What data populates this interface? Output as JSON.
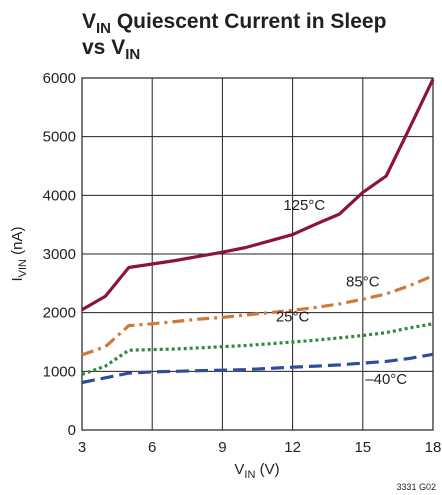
{
  "chart_data": {
    "type": "line",
    "title": {
      "line1": {
        "main": "V",
        "sub": "IN",
        "rest": " Quiescent Current in Sleep"
      },
      "line2": {
        "main": "vs V",
        "sub": "IN"
      }
    },
    "xlabel": {
      "main": "V",
      "sub": "IN",
      "rest": " (V)"
    },
    "ylabel": {
      "main": "I",
      "sub": "VIN",
      "rest": " (nA)"
    },
    "xlim": [
      3,
      18
    ],
    "ylim": [
      0,
      6000
    ],
    "xticks": [
      3,
      6,
      9,
      12,
      15,
      18
    ],
    "yticks": [
      0,
      1000,
      2000,
      3000,
      4000,
      5000,
      6000
    ],
    "grid": true,
    "series": [
      {
        "name": "125°C",
        "color": "#8b1538",
        "dash": "solid",
        "x": [
          3,
          4,
          5,
          6,
          7,
          8,
          9,
          10,
          11,
          12,
          13,
          14,
          15,
          16,
          17,
          18
        ],
        "y": [
          2050,
          2280,
          2770,
          2830,
          2890,
          2960,
          3030,
          3110,
          3220,
          3330,
          3510,
          3680,
          4050,
          4330,
          5150,
          5980
        ]
      },
      {
        "name": "85°C",
        "color": "#d07a3a",
        "dash": "dashdot",
        "x": [
          3,
          4,
          5,
          6,
          7,
          8,
          9,
          10,
          11,
          12,
          13,
          14,
          15,
          16,
          17,
          18
        ],
        "y": [
          1280,
          1420,
          1780,
          1810,
          1850,
          1890,
          1920,
          1960,
          2000,
          2040,
          2090,
          2150,
          2230,
          2320,
          2460,
          2630
        ]
      },
      {
        "name": "25°C",
        "color": "#2f8a3e",
        "dash": "dot",
        "x": [
          3,
          4,
          5,
          6,
          7,
          8,
          9,
          10,
          11,
          12,
          13,
          14,
          15,
          16,
          17,
          18
        ],
        "y": [
          950,
          1090,
          1360,
          1370,
          1380,
          1400,
          1420,
          1440,
          1470,
          1500,
          1530,
          1570,
          1610,
          1660,
          1740,
          1810
        ]
      },
      {
        "name": "–40°C",
        "color": "#2e4d9c",
        "dash": "dash",
        "x": [
          3,
          4,
          5,
          6,
          7,
          8,
          9,
          10,
          11,
          12,
          13,
          14,
          15,
          16,
          17,
          18
        ],
        "y": [
          810,
          890,
          970,
          990,
          1000,
          1010,
          1020,
          1030,
          1050,
          1070,
          1090,
          1110,
          1140,
          1170,
          1220,
          1290
        ]
      }
    ],
    "series_label_positions": {
      "125°C": [
        12.5,
        3750
      ],
      "85°C": [
        15.0,
        2450
      ],
      "25°C": [
        12.0,
        1850
      ],
      "–40°C": [
        16.0,
        780
      ]
    },
    "figure_code": "3331 G02"
  }
}
